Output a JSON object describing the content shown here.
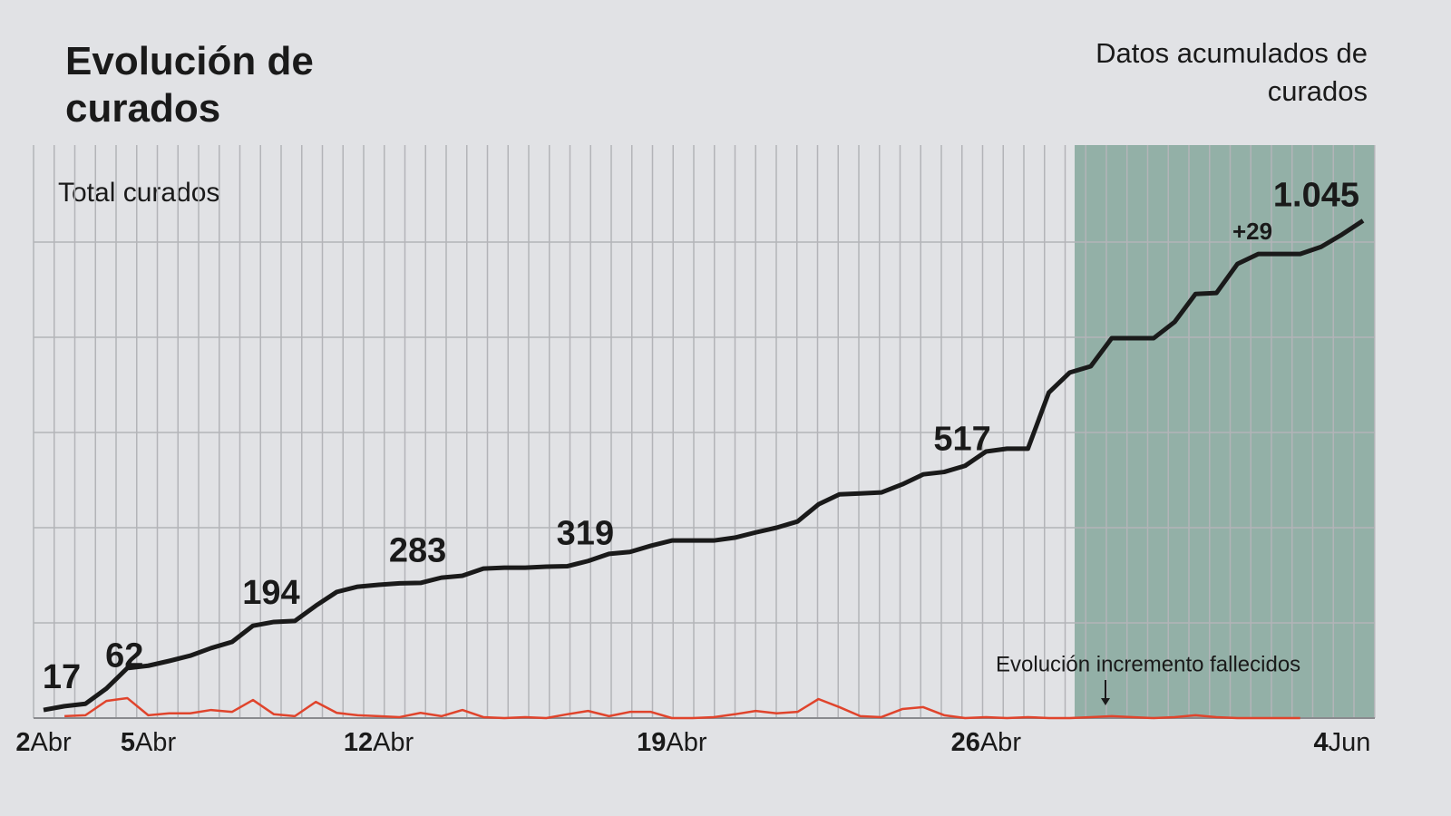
{
  "chart_data": {
    "type": "line",
    "title": "Evolución de curados",
    "subtitle": "Datos acumulados de curados",
    "y_label": "Total curados",
    "categories": [
      "2Abr",
      null,
      null,
      null,
      null,
      "5Abr",
      null,
      null,
      null,
      null,
      null,
      null,
      null,
      null,
      null,
      null,
      "12Abr",
      null,
      null,
      null,
      null,
      null,
      null,
      null,
      null,
      null,
      null,
      null,
      null,
      null,
      "19Abr",
      null,
      null,
      null,
      null,
      null,
      null,
      null,
      null,
      null,
      null,
      null,
      null,
      null,
      null,
      "26Abr",
      null,
      null,
      null,
      null,
      null,
      null,
      null,
      null,
      null,
      null,
      null,
      null,
      null,
      null,
      null,
      null,
      "4Jun",
      null
    ],
    "series": [
      {
        "name": "Total curados",
        "color": "#1a1a1a",
        "values": [
          17,
          25,
          30,
          62,
          105,
          110,
          120,
          131,
          147,
          160,
          194,
          202,
          204,
          236,
          265,
          276,
          280,
          283,
          284,
          295,
          299,
          314,
          316,
          316,
          318,
          319,
          330,
          345,
          349,
          362,
          373,
          373,
          373,
          379,
          390,
          400,
          413,
          449,
          470,
          472,
          474,
          491,
          512,
          517,
          530,
          560,
          566,
          566,
          684,
          726,
          739,
          798,
          798,
          798,
          832,
          891,
          893,
          954,
          975,
          975,
          975,
          990,
          1016,
          1045
        ],
        "value_labels": [
          "17",
          null,
          null,
          "62",
          null,
          null,
          null,
          null,
          null,
          null,
          "194",
          null,
          null,
          null,
          null,
          null,
          null,
          "283",
          null,
          null,
          null,
          null,
          null,
          null,
          null,
          "319",
          null,
          null,
          null,
          null,
          null,
          null,
          null,
          null,
          null,
          null,
          null,
          null,
          null,
          null,
          null,
          null,
          null,
          "517",
          null,
          null,
          null,
          null,
          null,
          null,
          null,
          null,
          null,
          null,
          null,
          null,
          null,
          null,
          null,
          null,
          null,
          null,
          null,
          "1.045"
        ]
      },
      {
        "name": "Evolución incremento fallecidos",
        "color": "#e0442c",
        "values": [
          null,
          4,
          6,
          36,
          42,
          6,
          10,
          10,
          17,
          13,
          38,
          8,
          4,
          34,
          11,
          6,
          4,
          2,
          11,
          4,
          17,
          2,
          0,
          2,
          0,
          8,
          15,
          4,
          13,
          13,
          0,
          0,
          2,
          8,
          15,
          10,
          13,
          40,
          23,
          4,
          2,
          19,
          23,
          6,
          0,
          2,
          0,
          2,
          0,
          0,
          2,
          4,
          2,
          0,
          2,
          6,
          2,
          0,
          0,
          0,
          0,
          null,
          null,
          null
        ]
      }
    ],
    "annotations": [
      {
        "text": "+29"
      }
    ],
    "ylim": [
      0,
      1200
    ],
    "yticks": [
      0,
      200,
      400,
      600,
      800,
      1000
    ],
    "grid": true
  }
}
